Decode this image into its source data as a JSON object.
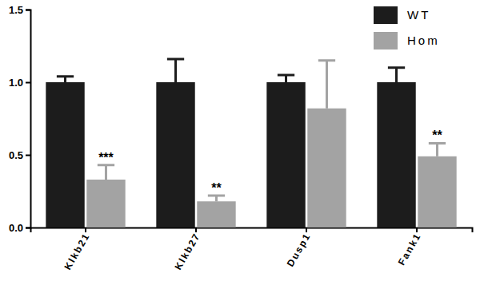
{
  "chart_data": {
    "type": "bar",
    "categories": [
      "Klkb21",
      "Klkb27",
      "Dusp1",
      "Fank1"
    ],
    "series": [
      {
        "name": "WT",
        "color": "#1c1c1c",
        "values": [
          1.0,
          1.0,
          1.0,
          1.0
        ],
        "errors": [
          0.04,
          0.16,
          0.05,
          0.1
        ]
      },
      {
        "name": "Hom",
        "color": "#a3a3a3",
        "values": [
          0.33,
          0.18,
          0.82,
          0.49
        ],
        "errors": [
          0.1,
          0.04,
          0.33,
          0.09
        ]
      }
    ],
    "annotations": [
      {
        "category": "Klkb21",
        "text": "***"
      },
      {
        "category": "Klkb27",
        "text": "**"
      },
      {
        "category": "Fank1",
        "text": "**"
      }
    ],
    "ylim": [
      0,
      1.5
    ],
    "yticks": [
      {
        "value": 0,
        "label": "0.0"
      },
      {
        "value": 0.5,
        "label": "0.5"
      },
      {
        "value": 1,
        "label": "1.0"
      },
      {
        "value": 1.5,
        "label": "1.5"
      }
    ],
    "legend": "upper right",
    "grid": false
  }
}
